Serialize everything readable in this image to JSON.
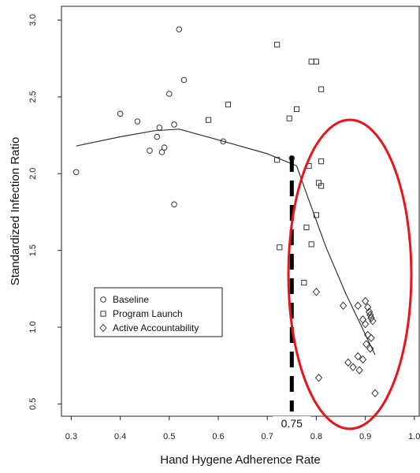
{
  "chart_data": {
    "type": "scatter",
    "xlabel": "Hand Hygene Adherence Rate",
    "ylabel": "Standardized Infection Ratio",
    "xlim": [
      0.28,
      1.01
    ],
    "ylim": [
      0.42,
      3.09
    ],
    "x_ticks": [
      "0.3",
      "0.4",
      "0.5",
      "0.6",
      "0.7",
      "0.8",
      "0.9",
      "1.0"
    ],
    "y_ticks": [
      "0.5",
      "1.0",
      "1.5",
      "2.0",
      "2.5",
      "3.0"
    ],
    "grid": false,
    "legend_position": "lower-left",
    "series": [
      {
        "name": "Baseline",
        "marker": "circle",
        "points": [
          {
            "x": 0.31,
            "y": 2.01
          },
          {
            "x": 0.4,
            "y": 2.39
          },
          {
            "x": 0.435,
            "y": 2.34
          },
          {
            "x": 0.46,
            "y": 2.15
          },
          {
            "x": 0.475,
            "y": 2.24
          },
          {
            "x": 0.48,
            "y": 2.3
          },
          {
            "x": 0.485,
            "y": 2.14
          },
          {
            "x": 0.49,
            "y": 2.17
          },
          {
            "x": 0.5,
            "y": 2.52
          },
          {
            "x": 0.51,
            "y": 2.32
          },
          {
            "x": 0.51,
            "y": 1.8
          },
          {
            "x": 0.52,
            "y": 2.94
          },
          {
            "x": 0.53,
            "y": 2.61
          },
          {
            "x": 0.61,
            "y": 2.21
          },
          {
            "x": 0.75,
            "y": 2.1
          }
        ]
      },
      {
        "name": "Program Launch",
        "marker": "square",
        "points": [
          {
            "x": 0.58,
            "y": 2.35
          },
          {
            "x": 0.62,
            "y": 2.45
          },
          {
            "x": 0.72,
            "y": 2.84
          },
          {
            "x": 0.72,
            "y": 2.09
          },
          {
            "x": 0.725,
            "y": 1.52
          },
          {
            "x": 0.745,
            "y": 2.36
          },
          {
            "x": 0.76,
            "y": 2.42
          },
          {
            "x": 0.78,
            "y": 1.65
          },
          {
            "x": 0.775,
            "y": 1.29
          },
          {
            "x": 0.785,
            "y": 2.05
          },
          {
            "x": 0.79,
            "y": 2.73
          },
          {
            "x": 0.8,
            "y": 2.73
          },
          {
            "x": 0.79,
            "y": 1.54
          },
          {
            "x": 0.8,
            "y": 1.73
          },
          {
            "x": 0.805,
            "y": 1.94
          },
          {
            "x": 0.81,
            "y": 1.92
          },
          {
            "x": 0.81,
            "y": 2.08
          },
          {
            "x": 0.81,
            "y": 2.55
          }
        ]
      },
      {
        "name": "Active Accountability",
        "marker": "diamond",
        "points": [
          {
            "x": 0.8,
            "y": 1.23
          },
          {
            "x": 0.805,
            "y": 0.67
          },
          {
            "x": 0.855,
            "y": 1.14
          },
          {
            "x": 0.865,
            "y": 0.77
          },
          {
            "x": 0.875,
            "y": 0.74
          },
          {
            "x": 0.885,
            "y": 1.14
          },
          {
            "x": 0.885,
            "y": 0.81
          },
          {
            "x": 0.888,
            "y": 0.72
          },
          {
            "x": 0.895,
            "y": 0.79
          },
          {
            "x": 0.895,
            "y": 1.05
          },
          {
            "x": 0.9,
            "y": 1.17
          },
          {
            "x": 0.9,
            "y": 1.02
          },
          {
            "x": 0.902,
            "y": 0.89
          },
          {
            "x": 0.905,
            "y": 1.13
          },
          {
            "x": 0.905,
            "y": 0.95
          },
          {
            "x": 0.908,
            "y": 1.1
          },
          {
            "x": 0.91,
            "y": 0.86
          },
          {
            "x": 0.91,
            "y": 1.08
          },
          {
            "x": 0.912,
            "y": 1.06
          },
          {
            "x": 0.915,
            "y": 1.04
          },
          {
            "x": 0.92,
            "y": 0.57
          },
          {
            "x": 0.912,
            "y": 0.93
          }
        ]
      }
    ],
    "trend_line": {
      "points": [
        {
          "x": 0.31,
          "y": 2.18
        },
        {
          "x": 0.4,
          "y": 2.24
        },
        {
          "x": 0.47,
          "y": 2.28
        },
        {
          "x": 0.52,
          "y": 2.29
        },
        {
          "x": 0.6,
          "y": 2.22
        },
        {
          "x": 0.7,
          "y": 2.13
        },
        {
          "x": 0.76,
          "y": 2.05
        },
        {
          "x": 0.78,
          "y": 1.87
        },
        {
          "x": 0.82,
          "y": 1.52
        },
        {
          "x": 0.86,
          "y": 1.22
        },
        {
          "x": 0.92,
          "y": 0.82
        }
      ]
    },
    "annotations": {
      "threshold_x": 0.75,
      "threshold_label": "0.75",
      "threshold_color": "#000000",
      "highlight_color": "#e8141a"
    }
  }
}
